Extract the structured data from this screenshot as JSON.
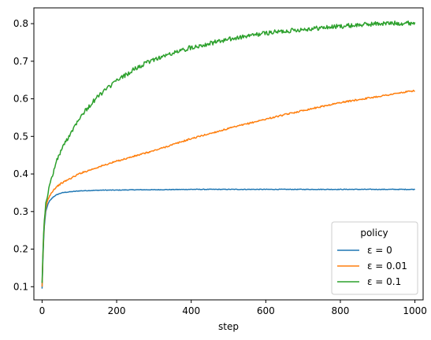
{
  "chart_data": {
    "type": "line",
    "title": "",
    "xlabel": "step",
    "ylabel": "",
    "xlim": [
      -22,
      1022
    ],
    "ylim": [
      0.065,
      0.842
    ],
    "xticks": [
      0,
      200,
      400,
      600,
      800,
      1000
    ],
    "yticks": [
      0.1,
      0.2,
      0.3,
      0.4,
      0.5,
      0.6,
      0.7,
      0.8
    ],
    "grid": false,
    "legend": {
      "title": "policy",
      "position": "lower-right"
    },
    "series": [
      {
        "name": "ε = 0",
        "color": "#1f77b4",
        "noise": 0.0008,
        "x": [
          0,
          3,
          6,
          10,
          15,
          20,
          30,
          40,
          50,
          60,
          80,
          100,
          130,
          160,
          200,
          250,
          300,
          400,
          500,
          600,
          700,
          800,
          900,
          1000
        ],
        "y": [
          0.095,
          0.2,
          0.26,
          0.3,
          0.318,
          0.328,
          0.339,
          0.345,
          0.349,
          0.351,
          0.353,
          0.355,
          0.356,
          0.357,
          0.357,
          0.358,
          0.358,
          0.359,
          0.359,
          0.359,
          0.359,
          0.359,
          0.359,
          0.359
        ]
      },
      {
        "name": "ε = 0.01",
        "color": "#ff7f0e",
        "noise": 0.002,
        "x": [
          0,
          3,
          6,
          10,
          15,
          20,
          30,
          40,
          50,
          60,
          80,
          100,
          150,
          200,
          300,
          400,
          500,
          600,
          700,
          800,
          900,
          1000
        ],
        "y": [
          0.1,
          0.21,
          0.27,
          0.31,
          0.33,
          0.342,
          0.357,
          0.367,
          0.374,
          0.38,
          0.39,
          0.401,
          0.418,
          0.434,
          0.462,
          0.494,
          0.521,
          0.546,
          0.569,
          0.59,
          0.606,
          0.622
        ]
      },
      {
        "name": "ε = 0.1",
        "color": "#2ca02c",
        "noise": 0.006,
        "x": [
          0,
          3,
          6,
          10,
          15,
          20,
          30,
          40,
          50,
          60,
          80,
          100,
          150,
          200,
          250,
          300,
          400,
          500,
          600,
          700,
          800,
          900,
          1000
        ],
        "y": [
          0.11,
          0.22,
          0.28,
          0.32,
          0.345,
          0.368,
          0.405,
          0.437,
          0.46,
          0.48,
          0.515,
          0.55,
          0.607,
          0.648,
          0.68,
          0.705,
          0.737,
          0.758,
          0.775,
          0.785,
          0.793,
          0.8,
          0.802
        ]
      }
    ]
  }
}
